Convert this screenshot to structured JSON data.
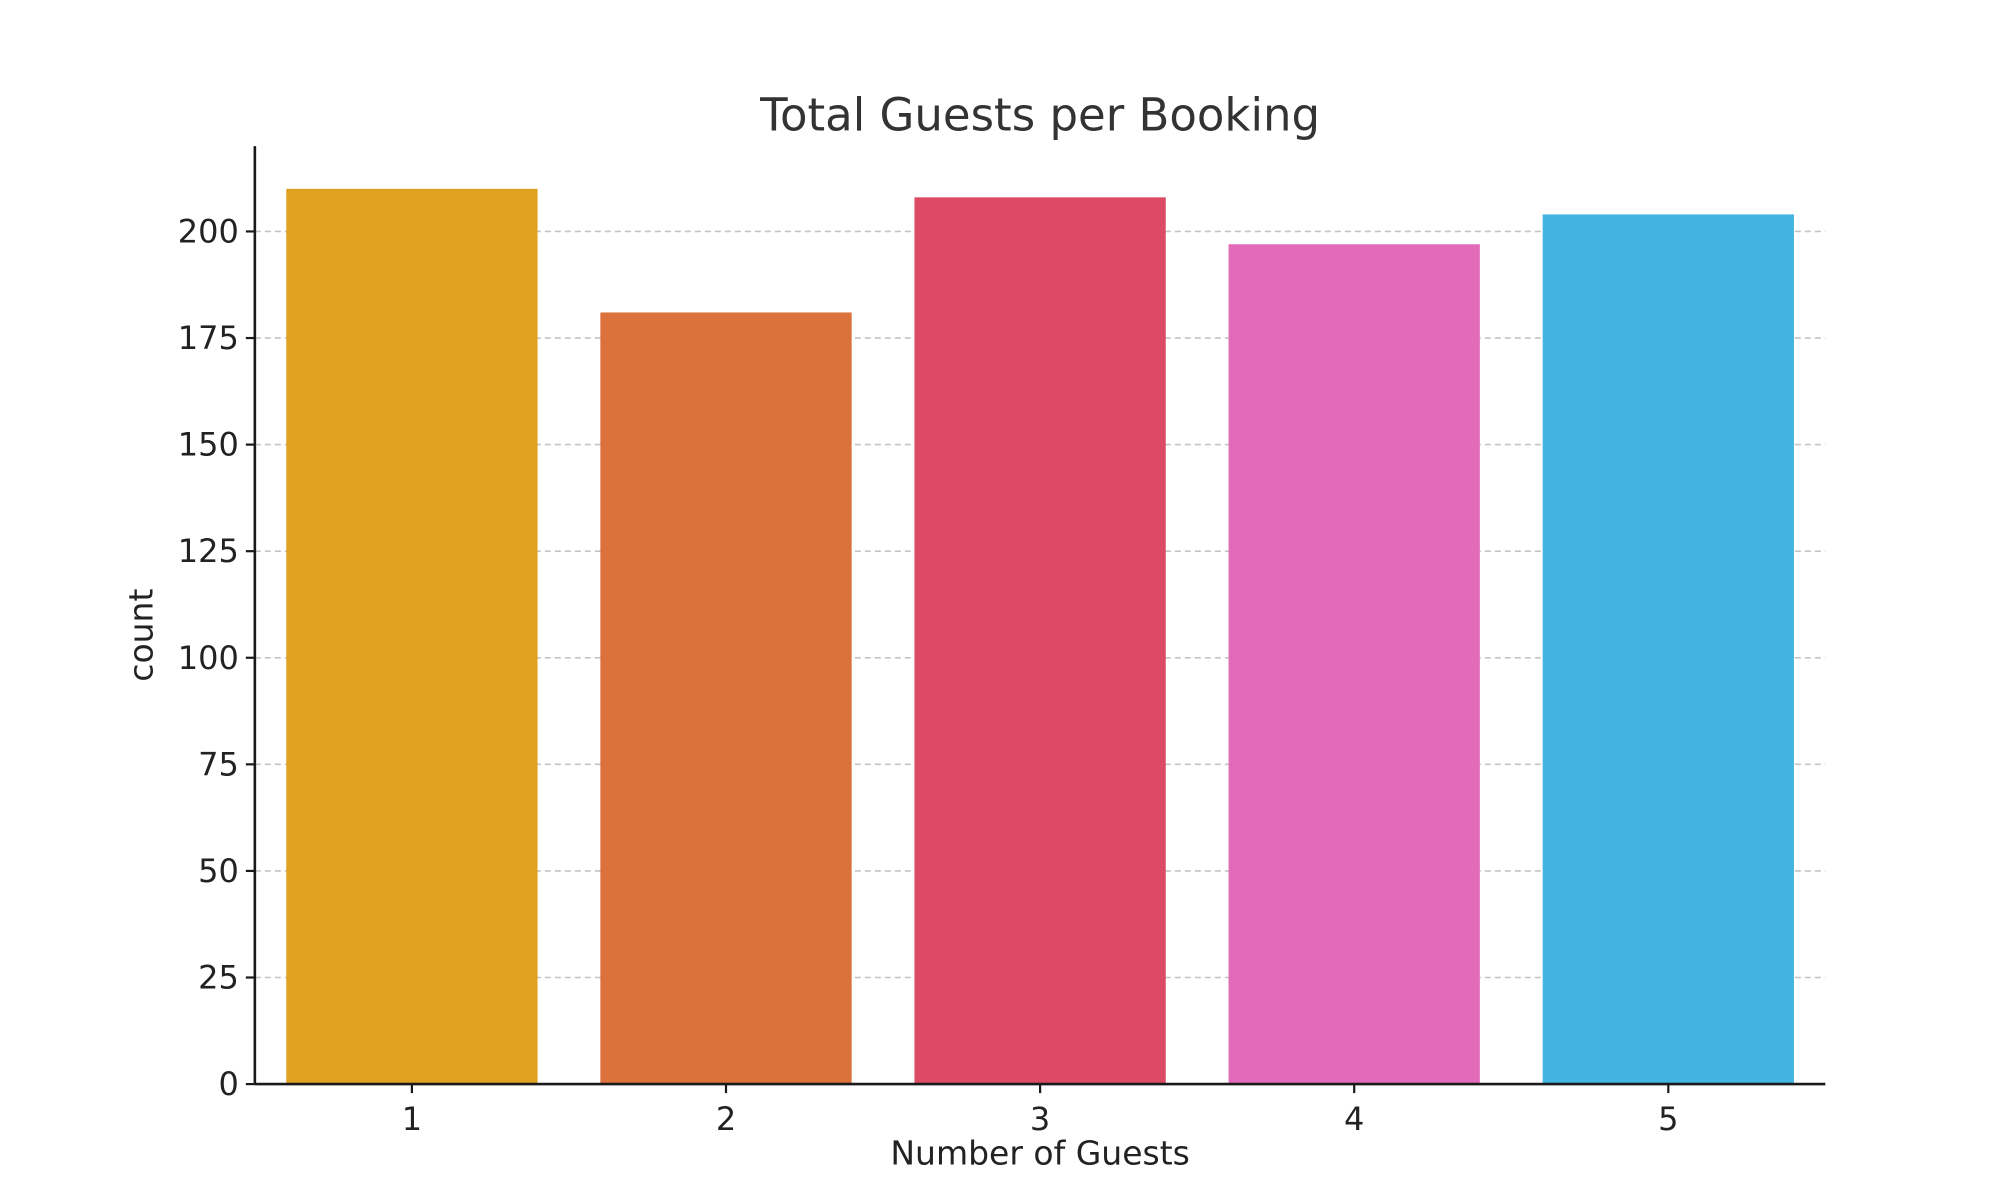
{
  "chart_data": {
    "type": "bar",
    "title": "Total Guests per Booking",
    "xlabel": "Number of Guests",
    "ylabel": "count",
    "categories": [
      "1",
      "2",
      "3",
      "4",
      "5"
    ],
    "values": [
      210,
      181,
      208,
      197,
      204
    ],
    "colors": [
      "#E0A020",
      "#DB713B",
      "#DC4A66",
      "#E26BB9",
      "#43B3E3"
    ],
    "ylim": [
      0,
      220
    ],
    "yticks": [
      0,
      25,
      50,
      75,
      100,
      125,
      150,
      175,
      200
    ],
    "grid": "horizontal dashed",
    "legend": "none"
  }
}
